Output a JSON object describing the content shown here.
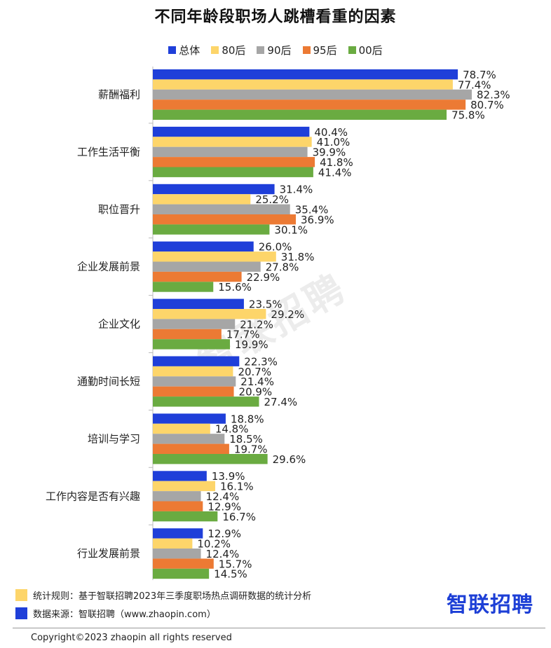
{
  "title": "不同年龄段职场人跳槽看重的因素",
  "watermark": "智联招聘",
  "legend": [
    {
      "name": "总体",
      "color": "#1f3fd9"
    },
    {
      "name": "80后",
      "color": "#fdd56a"
    },
    {
      "name": "90后",
      "color": "#a6a6a6"
    },
    {
      "name": "95后",
      "color": "#ec7a34"
    },
    {
      "name": "00后",
      "color": "#6aab41"
    }
  ],
  "chart_data": {
    "type": "bar",
    "orientation": "horizontal",
    "categories": [
      "薪酬福利",
      "工作生活平衡",
      "职位晋升",
      "企业发展前景",
      "企业文化",
      "通勤时间长短",
      "培训与学习",
      "工作内容是否有兴趣",
      "行业发展前景"
    ],
    "series": [
      {
        "name": "总体",
        "color": "#1f3fd9",
        "values": [
          78.7,
          40.4,
          31.4,
          26.0,
          23.5,
          22.3,
          18.8,
          13.9,
          12.9
        ],
        "labels": [
          "78.7%",
          "40.4%",
          "31.4%",
          "26.0%",
          "23.5%",
          "22.3%",
          "18.8%",
          "13.9%",
          "12.9%"
        ]
      },
      {
        "name": "80后",
        "color": "#fdd56a",
        "values": [
          77.4,
          41.0,
          25.2,
          31.8,
          29.2,
          20.7,
          14.8,
          16.1,
          10.2
        ],
        "labels": [
          "77.4%",
          "41.0%",
          "25.2%",
          "31.8%",
          "29.2%",
          "20.7%",
          "14.8%",
          "16.1%",
          "10.2%"
        ]
      },
      {
        "name": "90后",
        "color": "#a6a6a6",
        "values": [
          82.3,
          39.9,
          35.4,
          27.8,
          21.2,
          21.4,
          18.5,
          12.4,
          12.4
        ],
        "labels": [
          "82.3%",
          "39.9%",
          "35.4%",
          "27.8%",
          "21.2%",
          "21.4%",
          "18.5%",
          "12.4%",
          "12.4%"
        ]
      },
      {
        "name": "95后",
        "color": "#ec7a34",
        "values": [
          80.7,
          41.8,
          36.9,
          22.9,
          17.7,
          20.9,
          19.7,
          12.9,
          15.7
        ],
        "labels": [
          "80.7%",
          "41.8%",
          "36.9%",
          "22.9%",
          "17.7%",
          "20.9%",
          "19.7%",
          "12.9%",
          "15.7%"
        ]
      },
      {
        "name": "00后",
        "color": "#6aab41",
        "values": [
          75.8,
          41.4,
          30.1,
          15.6,
          19.9,
          27.4,
          29.6,
          16.7,
          14.5
        ],
        "labels": [
          "75.8%",
          "41.4%",
          "30.1%",
          "15.6%",
          "19.9%",
          "27.4%",
          "29.6%",
          "16.7%",
          "14.5%"
        ]
      }
    ],
    "xlim": [
      0,
      100
    ],
    "legend_position": "top",
    "grid": false
  },
  "notes": [
    {
      "text": "统计规则：基于智联招聘2023年三季度职场热点调研数据的统计分析",
      "color": "#fdd56a"
    },
    {
      "text": "数据来源：智联招聘（www.zhaopin.com）",
      "color": "#1f3fd9"
    }
  ],
  "brand_logo": "智联招聘",
  "copyright": "Copyright©2023 zhaopin all rights reserved"
}
